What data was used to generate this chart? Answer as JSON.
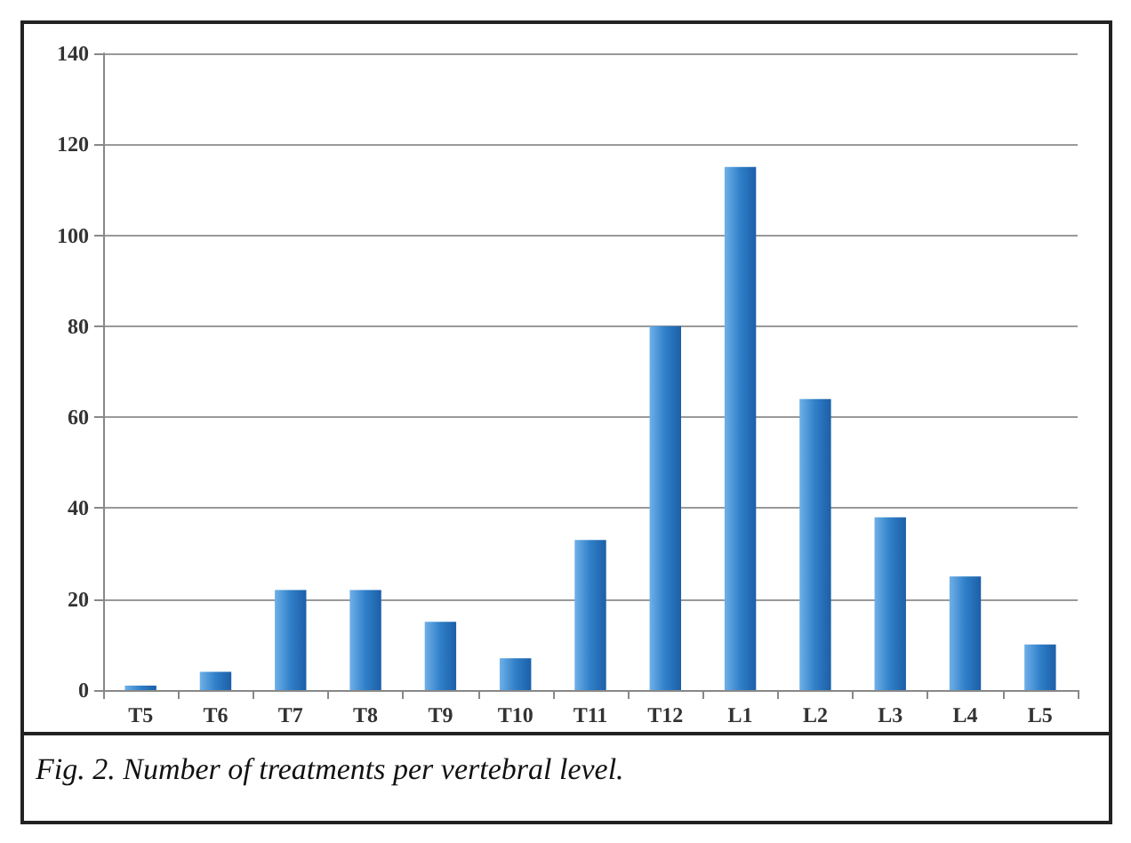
{
  "chart_data": {
    "type": "bar",
    "categories": [
      "T5",
      "T6",
      "T7",
      "T8",
      "T9",
      "T10",
      "T11",
      "T12",
      "L1",
      "L2",
      "L3",
      "L4",
      "L5"
    ],
    "values": [
      1,
      4,
      22,
      22,
      15,
      7,
      33,
      80,
      115,
      64,
      38,
      25,
      10
    ],
    "color": "#2f7fc8",
    "ylim": [
      0,
      140
    ],
    "yticks": [
      0,
      20,
      40,
      60,
      80,
      100,
      120,
      140
    ],
    "grid": "y",
    "annotations": [
      "Fig. 2. Number of treatments per vertebral level."
    ]
  }
}
